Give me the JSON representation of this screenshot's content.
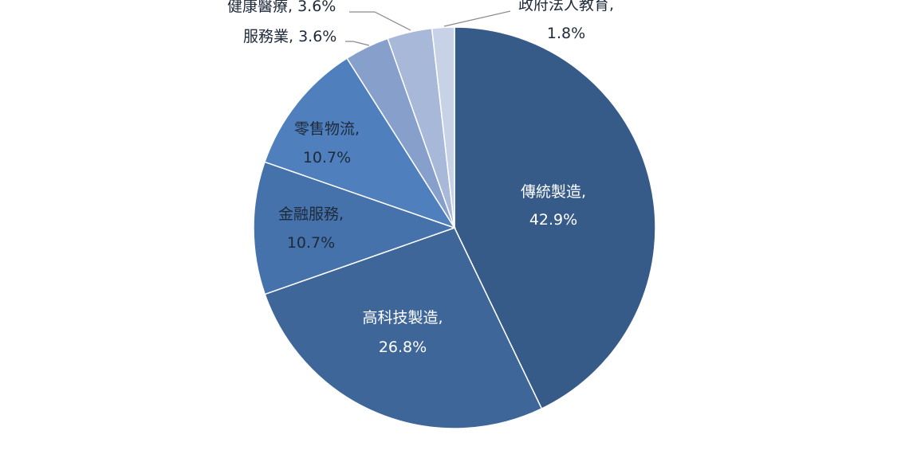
{
  "chart_data": {
    "type": "pie",
    "title": "",
    "start_angle_deg": 0,
    "direction": "clockwise",
    "slices": [
      {
        "name": "傳統製造",
        "value": 42.9,
        "label_value": "42.9%",
        "color": "#375b88"
      },
      {
        "name": "高科技製造",
        "value": 26.8,
        "label_value": "26.8%",
        "color": "#3e6699"
      },
      {
        "name": "金融服務",
        "value": 10.7,
        "label_value": "10.7%",
        "color": "#4572ab"
      },
      {
        "name": "零售物流",
        "value": 10.7,
        "label_value": "10.7%",
        "color": "#4f80bd"
      },
      {
        "name": "服務業",
        "value": 3.6,
        "label_value": "3.6%",
        "color": "#87a0cb"
      },
      {
        "name": "健康醫療",
        "value": 3.6,
        "label_value": "3.6%",
        "color": "#a8b8d9"
      },
      {
        "name": "政府法人教育",
        "value": 1.8,
        "label_value": "1.8%",
        "color": "#c8d2e7"
      }
    ]
  }
}
